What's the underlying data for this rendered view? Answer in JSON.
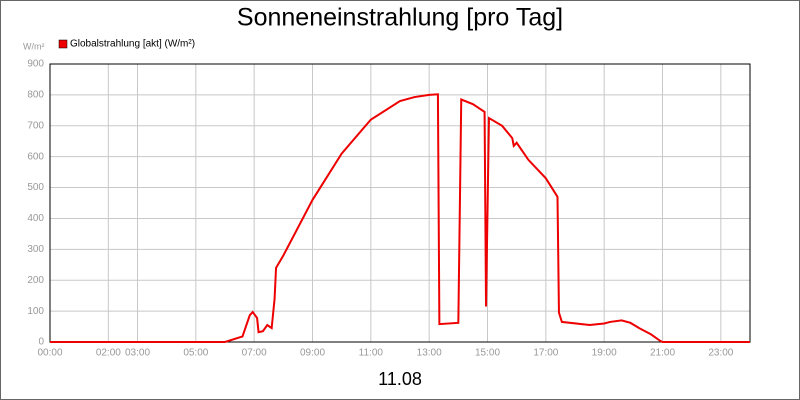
{
  "chart_data": {
    "type": "line",
    "title": "Sonneneinstrahlung [pro Tag]",
    "xlabel": "11.08",
    "ylabel": "W/m²",
    "x": [
      0,
      6.0,
      6.6,
      6.85,
      6.95,
      7.1,
      7.15,
      7.3,
      7.45,
      7.6,
      7.7,
      7.75,
      8.0,
      9.0,
      10.0,
      11.0,
      12.0,
      12.5,
      13.0,
      13.3,
      13.35,
      14.0,
      14.1,
      14.5,
      14.9,
      14.95,
      15.05,
      15.5,
      15.85,
      15.9,
      16.0,
      16.4,
      17.0,
      17.4,
      17.45,
      17.55,
      18.5,
      19.0,
      19.2,
      19.6,
      19.9,
      20.2,
      20.6,
      20.9,
      21.0,
      24
    ],
    "series": [
      {
        "name": "Globalstrahlung [akt] (W/m²)",
        "color": "#ee0000",
        "values": [
          0,
          0,
          18,
          87,
          97,
          78,
          32,
          35,
          55,
          45,
          140,
          240,
          280,
          460,
          610,
          720,
          780,
          793,
          800,
          802,
          58,
          62,
          785,
          770,
          745,
          115,
          725,
          700,
          660,
          635,
          645,
          590,
          530,
          470,
          95,
          65,
          55,
          60,
          65,
          70,
          62,
          45,
          25,
          5,
          0,
          0
        ]
      }
    ],
    "xlim": [
      0,
      24
    ],
    "xticks": [
      {
        "value": 0,
        "label": "00:00"
      },
      {
        "value": 2,
        "label": "02:00"
      },
      {
        "value": 3,
        "label": "03:00"
      },
      {
        "value": 5,
        "label": "05:00"
      },
      {
        "value": 7,
        "label": "07:00"
      },
      {
        "value": 9,
        "label": "09:00"
      },
      {
        "value": 11,
        "label": "11:00"
      },
      {
        "value": 13,
        "label": "13:00"
      },
      {
        "value": 15,
        "label": "15:00"
      },
      {
        "value": 17,
        "label": "17:00"
      },
      {
        "value": 19,
        "label": "19:00"
      },
      {
        "value": 21,
        "label": "21:00"
      },
      {
        "value": 23,
        "label": "23:00"
      }
    ],
    "ylim": [
      0,
      900
    ],
    "yticks": [
      0,
      100,
      200,
      300,
      400,
      500,
      600,
      700,
      800,
      900
    ],
    "grid": true
  }
}
